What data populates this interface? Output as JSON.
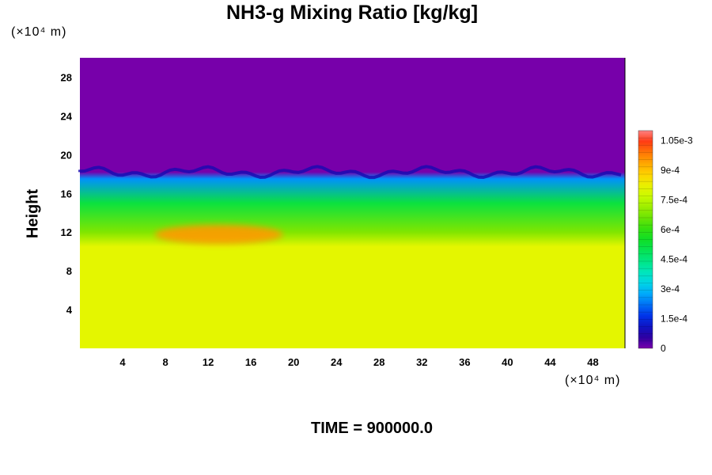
{
  "chart_data": {
    "type": "heatmap",
    "title": "NH3-g Mixing Ratio [kg/kg]",
    "ylabel": "Height",
    "xunit": "(×10⁴ m)",
    "yunit": "(×10⁴ m)",
    "x_ticks": [
      "4",
      "8",
      "12",
      "16",
      "20",
      "24",
      "28",
      "32",
      "36",
      "40",
      "44",
      "48"
    ],
    "y_ticks": [
      "4",
      "8",
      "12",
      "16",
      "20",
      "24",
      "28"
    ],
    "xlim": [
      0,
      51
    ],
    "ylim": [
      0,
      30
    ],
    "colorbar": {
      "min": 0,
      "max": 0.0011,
      "labels": [
        "1.05e-3",
        "9e-4",
        "7.5e-4",
        "6e-4",
        "4.5e-4",
        "3e-4",
        "1.5e-4",
        "0"
      ],
      "label_values": [
        0.00105,
        0.0009,
        0.00075,
        0.0006,
        0.00045,
        0.0003,
        0.00015,
        0
      ]
    },
    "field": {
      "lower_region": "uniform ~8e-4",
      "upper_region": "0",
      "layers": [
        {
          "height": 0,
          "value": 0.00081
        },
        {
          "height": 10.5,
          "value": 0.00081
        },
        {
          "height": 12,
          "value": 0.00068
        },
        {
          "height": 15,
          "value": 0.00052
        },
        {
          "height": 17.5,
          "value": 0.00025
        },
        {
          "height": 18.2,
          "value": 0.0
        }
      ],
      "maximum_patch": {
        "x_range": [
          7,
          19
        ],
        "height_range": [
          11,
          12.5
        ],
        "value": 0.00095
      }
    },
    "footer": "TIME = 900000.0"
  },
  "colors": {
    "background": "#ffffff",
    "field_top": "#7700aa",
    "field_bottom": "#ddff00",
    "maximum": "#ff9900"
  }
}
